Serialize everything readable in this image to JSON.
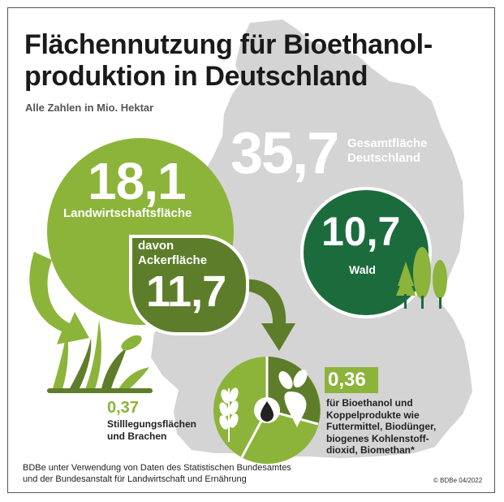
{
  "title_line1": "Flächennutzung für Bioethanol-",
  "title_line2": "produktion in Deutschland",
  "subtitle": "Alle Zahlen in Mio. Hektar",
  "total": {
    "value": "35,7",
    "label_line1": "Gesamtfläche",
    "label_line2": "Deutschland"
  },
  "agriculture": {
    "value": "18,1",
    "label": "Landwirtschaftsfläche"
  },
  "arable": {
    "label_line1": "davon",
    "label_line2": "Ackerfläche",
    "value": "11,7"
  },
  "forest": {
    "value": "10,7",
    "label": "Wald"
  },
  "fallow": {
    "value": "0,37",
    "label_line1": "Stilllegungsflächen",
    "label_line2": "und Brachen"
  },
  "bioethanol": {
    "value": "0,36",
    "lines": [
      "für Bioethanol und",
      "Koppelprodukte wie",
      "Futtermittel, Biodünger,",
      "biogenes Kohlenstoff-",
      "dioxid, Biomethan*"
    ]
  },
  "source": {
    "line1": "BDBe unter Verwendung von Daten des Statistischen Bundesamtes",
    "line2": "und der Bundesanstalt für Landwirtschaft und Ernährung"
  },
  "copyright": "© BDBe 04/2022",
  "colors": {
    "light_green": "#8cb43a",
    "dark_green": "#5e7d2a",
    "forest_green": "#1c6b3d",
    "map_gray": "#d4d4d4"
  },
  "icons": [
    "germany-map",
    "curved-arrow-icon",
    "grass-plant-icon",
    "tree-icon",
    "pie-chart-icon",
    "wheat-icon",
    "sugar-beet-icon",
    "ethanol-drop-icon"
  ]
}
